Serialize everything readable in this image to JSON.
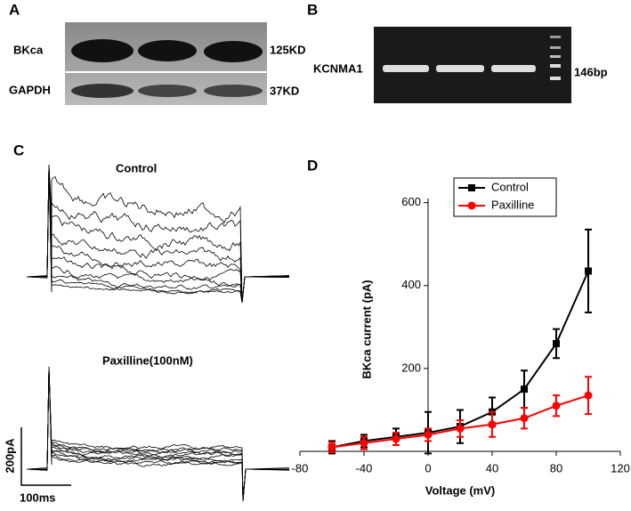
{
  "panels": {
    "a": {
      "label": "A",
      "row1": "BKca",
      "row2": "GAPDH",
      "size1": "125KD",
      "size2": "37KD"
    },
    "b": {
      "label": "B",
      "gene": "KCNMA1",
      "size": "146bp"
    },
    "c": {
      "label": "C",
      "top": "Control",
      "bottom": "Paxilline(100nM)",
      "scale_y": "200pA",
      "scale_x": "100ms"
    },
    "d": {
      "label": "D"
    }
  },
  "chart_data": {
    "type": "line",
    "x_label": "Voltage (mV)",
    "y_label": "BKca current (pA)",
    "x": [
      -60,
      -40,
      -20,
      0,
      20,
      40,
      60,
      80,
      100
    ],
    "series": [
      {
        "name": "Control",
        "color": "#000000",
        "marker": "square",
        "values": [
          10,
          25,
          35,
          45,
          60,
          95,
          150,
          260,
          435
        ],
        "errors": [
          15,
          15,
          20,
          50,
          40,
          35,
          45,
          35,
          100
        ]
      },
      {
        "name": "Paxilline",
        "color": "#ff0000",
        "marker": "circle",
        "values": [
          10,
          20,
          30,
          40,
          55,
          65,
          80,
          110,
          135
        ],
        "errors": [
          12,
          15,
          15,
          15,
          20,
          30,
          25,
          25,
          45
        ]
      }
    ],
    "xlim": [
      -80,
      120
    ],
    "xticks": [
      -80,
      -40,
      0,
      40,
      80,
      120
    ],
    "ylim": [
      0,
      610
    ],
    "yticks": [
      200,
      400,
      600
    ],
    "legend": "upper center"
  }
}
